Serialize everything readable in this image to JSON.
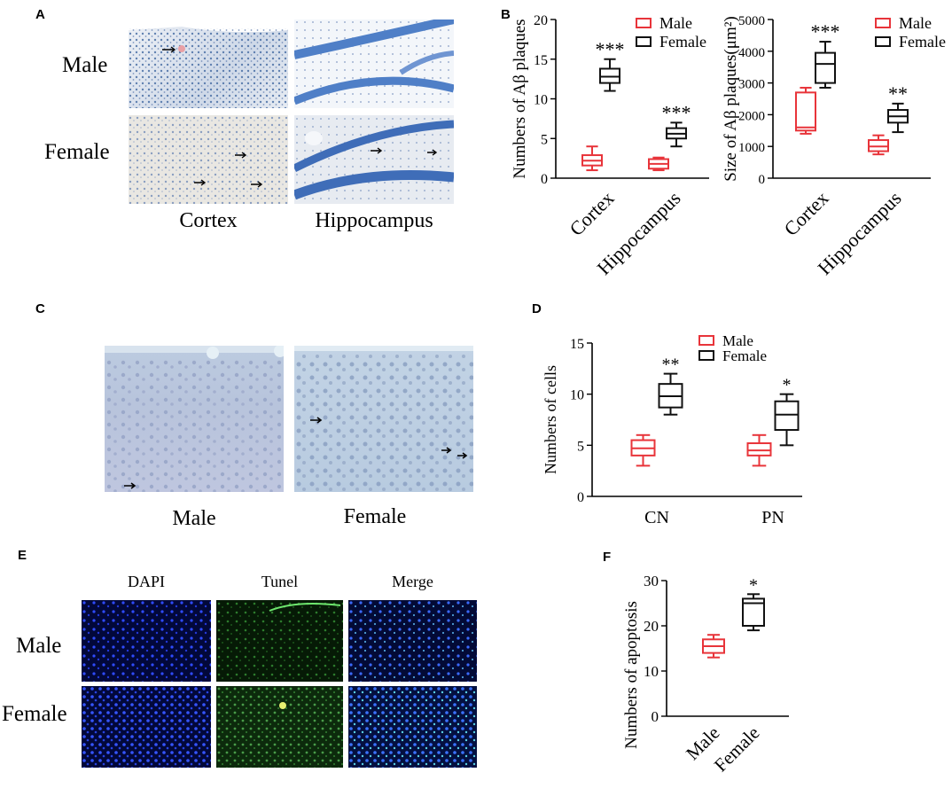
{
  "panels": {
    "A": {
      "letter": "A",
      "rows": [
        "Male",
        "Female"
      ],
      "cols": [
        "Cortex",
        "Hippocampus"
      ]
    },
    "C": {
      "letter": "C",
      "cols": [
        "Male",
        "Female"
      ]
    },
    "E": {
      "letter": "E",
      "rows": [
        "Male",
        "Female"
      ],
      "cols": [
        "DAPI",
        "Tunel",
        "Merge"
      ]
    }
  },
  "chart_data": [
    {
      "id": "B1",
      "letter": "B",
      "type": "boxplot",
      "ylabel": "Numbers of Aβ plaques",
      "ylim": [
        0,
        20
      ],
      "yticks": [
        0,
        5,
        10,
        15,
        20
      ],
      "categories": [
        "Cortex",
        "Hippocampus"
      ],
      "legend": {
        "placement": "top-right",
        "entries": [
          "Male",
          "Female"
        ]
      },
      "series": [
        {
          "name": "Male",
          "color": "#e8343a",
          "boxes": [
            {
              "min": 1,
              "q1": 1.6,
              "median": 2.2,
              "q3": 2.9,
              "max": 4
            },
            {
              "min": 1,
              "q1": 1.2,
              "median": 1.8,
              "q3": 2.4,
              "max": 2.6
            }
          ]
        },
        {
          "name": "Female",
          "color": "#111111",
          "boxes": [
            {
              "min": 11,
              "q1": 12,
              "median": 12.8,
              "q3": 13.8,
              "max": 15
            },
            {
              "min": 4,
              "q1": 5,
              "median": 5.6,
              "q3": 6.3,
              "max": 7
            }
          ]
        }
      ],
      "annotations": [
        "***",
        "***"
      ]
    },
    {
      "id": "B2",
      "type": "boxplot",
      "ylabel": "Size of Aβ plaques(μm²)",
      "ylim": [
        0,
        5000
      ],
      "yticks": [
        0,
        1000,
        2000,
        3000,
        4000,
        5000
      ],
      "categories": [
        "Cortex",
        "Hippocampus"
      ],
      "legend": {
        "placement": "top-right",
        "entries": [
          "Male",
          "Female"
        ]
      },
      "series": [
        {
          "name": "Male",
          "color": "#e8343a",
          "boxes": [
            {
              "min": 1400,
              "q1": 1500,
              "median": 1600,
              "q3": 2700,
              "max": 2850
            },
            {
              "min": 750,
              "q1": 850,
              "median": 1000,
              "q3": 1200,
              "max": 1350
            }
          ]
        },
        {
          "name": "Female",
          "color": "#111111",
          "boxes": [
            {
              "min": 2850,
              "q1": 3000,
              "median": 3600,
              "q3": 3950,
              "max": 4300
            },
            {
              "min": 1450,
              "q1": 1750,
              "median": 1950,
              "q3": 2150,
              "max": 2350
            }
          ]
        }
      ],
      "annotations": [
        "***",
        "**"
      ]
    },
    {
      "id": "D",
      "letter": "D",
      "type": "boxplot",
      "ylabel": "Numbers of cells",
      "ylim": [
        0,
        15
      ],
      "yticks": [
        0,
        5,
        10,
        15
      ],
      "categories": [
        "CN",
        "PN"
      ],
      "legend": {
        "placement": "top-right",
        "entries": [
          "Male",
          "Female"
        ]
      },
      "series": [
        {
          "name": "Male",
          "color": "#e8343a",
          "boxes": [
            {
              "min": 3,
              "q1": 4,
              "median": 4.7,
              "q3": 5.5,
              "max": 6
            },
            {
              "min": 3,
              "q1": 4,
              "median": 4.5,
              "q3": 5.2,
              "max": 6
            }
          ]
        },
        {
          "name": "Female",
          "color": "#111111",
          "boxes": [
            {
              "min": 8,
              "q1": 8.7,
              "median": 9.8,
              "q3": 11,
              "max": 12
            },
            {
              "min": 5,
              "q1": 6.5,
              "median": 8,
              "q3": 9.3,
              "max": 10
            }
          ]
        }
      ],
      "annotations": [
        "**",
        "*"
      ]
    },
    {
      "id": "F",
      "letter": "F",
      "type": "boxplot",
      "ylabel": "Numbers of apoptosis",
      "ylim": [
        0,
        30
      ],
      "yticks": [
        0,
        10,
        20,
        30
      ],
      "categories": [
        "Male",
        "Female"
      ],
      "series": [
        {
          "name": "Male",
          "color": "#e8343a",
          "boxes": [
            {
              "min": 13,
              "q1": 14,
              "median": 15.5,
              "q3": 17,
              "max": 18
            }
          ]
        },
        {
          "name": "Female",
          "color": "#111111",
          "boxes": [
            {
              "min": 19,
              "q1": 20,
              "median": 25,
              "q3": 26,
              "max": 27
            }
          ]
        }
      ],
      "annotations": [
        "*"
      ]
    }
  ]
}
